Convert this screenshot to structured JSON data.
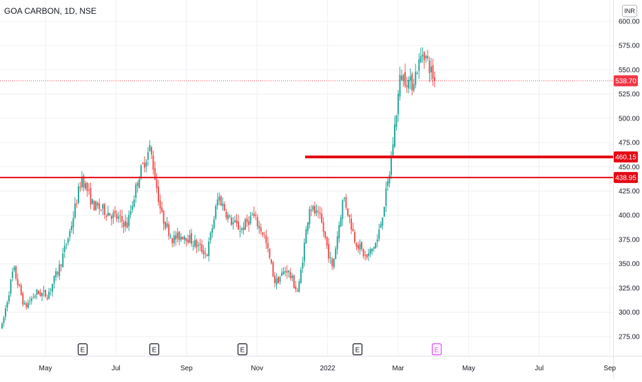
{
  "header": {
    "title": "GOA CARBON, 1D, NSE",
    "currency": "INR"
  },
  "chart_data": {
    "type": "candlestick",
    "title": "GOA CARBON, 1D, NSE",
    "ylim": [
      255,
      622
    ],
    "y_ticks": [
      "275.00",
      "300.00",
      "325.00",
      "350.00",
      "375.00",
      "400.00",
      "425.00",
      "450.00",
      "475.00",
      "500.00",
      "525.00",
      "550.00",
      "575.00",
      "600.00"
    ],
    "x_ticks": [
      "May",
      "Jul",
      "Sep",
      "Nov",
      "2022",
      "Mar",
      "May",
      "Jul",
      "Sep"
    ],
    "last_price": {
      "value": 538.7,
      "label": "538.70",
      "color": "#f23645"
    },
    "levels": [
      {
        "value": 460.15,
        "label": "460.15",
        "from": "Dec 22",
        "thickness": "thick",
        "color": "#e50914"
      },
      {
        "value": 438.95,
        "label": "438.95",
        "from": "start",
        "thickness": "thin",
        "color": "#e50914"
      }
    ],
    "earnings_markers": [
      {
        "label": "E",
        "date": "Jun",
        "highlight": false
      },
      {
        "label": "E",
        "date": "Aug",
        "highlight": false
      },
      {
        "label": "E",
        "date": "Nov",
        "highlight": false
      },
      {
        "label": "E",
        "date": "Feb",
        "highlight": false
      },
      {
        "label": "E",
        "date": "Apr",
        "highlight": true
      }
    ],
    "series": [
      {
        "name": "",
        "up_color": "#26a69a",
        "down_color": "#ef5350",
        "ohlc_close_path": [
          [
            "Apr",
            285
          ],
          [
            "mid Apr",
            345
          ],
          [
            "Apr end",
            305
          ],
          [
            "May",
            320
          ],
          [
            "May mid",
            318
          ],
          [
            "May end",
            345
          ],
          [
            "Jun",
            385
          ],
          [
            "Jun mid",
            440
          ],
          [
            "Jun end",
            410
          ],
          [
            "Jul",
            405
          ],
          [
            "Jul mid",
            398
          ],
          [
            "Jul end",
            390
          ],
          [
            "Aug",
            440
          ],
          [
            "Aug mid",
            470
          ],
          [
            "Aug end",
            400
          ],
          [
            "Sep",
            375
          ],
          [
            "Sep mid",
            380
          ],
          [
            "Sep end",
            370
          ],
          [
            "Oct",
            360
          ],
          [
            "Oct mid",
            420
          ],
          [
            "Oct end",
            395
          ],
          [
            "Nov",
            385
          ],
          [
            "Nov mid",
            400
          ],
          [
            "Nov end",
            380
          ],
          [
            "Dec",
            330
          ],
          [
            "Dec mid",
            345
          ],
          [
            "Dec end",
            320
          ],
          [
            "Jan",
            410
          ],
          [
            "Jan mid",
            395
          ],
          [
            "Jan end",
            345
          ],
          [
            "Feb",
            420
          ],
          [
            "Feb mid",
            375
          ],
          [
            "Feb end",
            355
          ],
          [
            "Mar",
            375
          ],
          [
            "Mar mid",
            440
          ],
          [
            "Mar end",
            545
          ],
          [
            "Apr",
            535
          ],
          [
            "Apr mid",
            570
          ],
          [
            "Apr end",
            538.7
          ]
        ]
      }
    ]
  }
}
